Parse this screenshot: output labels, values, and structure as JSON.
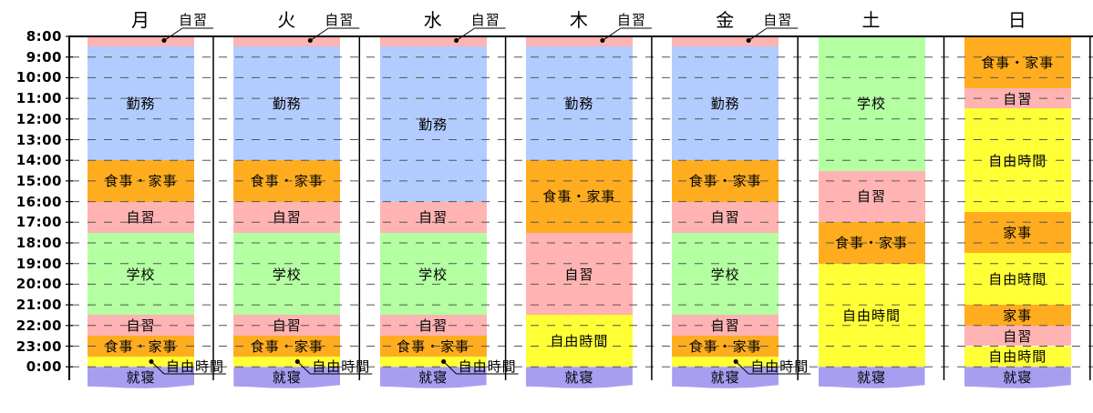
{
  "time_labels": [
    "8:00",
    "9:00",
    "10:00",
    "11:00",
    "12:00",
    "13:00",
    "14:00",
    "15:00",
    "16:00",
    "17:00",
    "18:00",
    "19:00",
    "20:00",
    "21:00",
    "22:00",
    "23:00",
    "0:00"
  ],
  "colors": {
    "自習": "#ffb3b3",
    "勤務": "#b3ccff",
    "食事・家事": "#ffad1f",
    "学校": "#b3ffa1",
    "自由時間": "#ffff35",
    "就寝": "#a89ef0",
    "家事": "#ffad1f"
  },
  "days": [
    {
      "name": "月",
      "callout_top": "自習",
      "callout_bottom": "自由時間",
      "blocks": [
        {
          "start": 8.0,
          "end": 8.5,
          "label": "自習",
          "show": false
        },
        {
          "start": 8.5,
          "end": 14.0,
          "label": "勤務",
          "show": true
        },
        {
          "start": 14.0,
          "end": 16.0,
          "label": "食事・家事",
          "show": true
        },
        {
          "start": 16.0,
          "end": 17.5,
          "label": "自習",
          "show": true
        },
        {
          "start": 17.5,
          "end": 21.5,
          "label": "学校",
          "show": true
        },
        {
          "start": 21.5,
          "end": 22.5,
          "label": "自習",
          "show": true
        },
        {
          "start": 22.5,
          "end": 23.5,
          "label": "食事・家事",
          "show": true
        },
        {
          "start": 23.5,
          "end": 24.0,
          "label": "自由時間",
          "show": false
        },
        {
          "start": 24.0,
          "end": 25.0,
          "label": "就寝",
          "show": true
        }
      ]
    },
    {
      "name": "火",
      "callout_top": "自習",
      "callout_bottom": "自由時間",
      "blocks": [
        {
          "start": 8.0,
          "end": 8.5,
          "label": "自習",
          "show": false
        },
        {
          "start": 8.5,
          "end": 14.0,
          "label": "勤務",
          "show": true
        },
        {
          "start": 14.0,
          "end": 16.0,
          "label": "食事・家事",
          "show": true
        },
        {
          "start": 16.0,
          "end": 17.5,
          "label": "自習",
          "show": true
        },
        {
          "start": 17.5,
          "end": 21.5,
          "label": "学校",
          "show": true
        },
        {
          "start": 21.5,
          "end": 22.5,
          "label": "自習",
          "show": true
        },
        {
          "start": 22.5,
          "end": 23.5,
          "label": "食事・家事",
          "show": true
        },
        {
          "start": 23.5,
          "end": 24.0,
          "label": "自由時間",
          "show": false
        },
        {
          "start": 24.0,
          "end": 25.0,
          "label": "就寝",
          "show": true
        }
      ]
    },
    {
      "name": "水",
      "callout_top": "自習",
      "callout_bottom": "自由時間",
      "blocks": [
        {
          "start": 8.0,
          "end": 8.5,
          "label": "自習",
          "show": false
        },
        {
          "start": 8.5,
          "end": 16.0,
          "label": "勤務",
          "show": true
        },
        {
          "start": 16.0,
          "end": 17.5,
          "label": "自習",
          "show": true
        },
        {
          "start": 17.5,
          "end": 21.5,
          "label": "学校",
          "show": true
        },
        {
          "start": 21.5,
          "end": 22.5,
          "label": "自習",
          "show": true
        },
        {
          "start": 22.5,
          "end": 23.5,
          "label": "食事・家事",
          "show": true
        },
        {
          "start": 23.5,
          "end": 24.0,
          "label": "自由時間",
          "show": false
        },
        {
          "start": 24.0,
          "end": 25.0,
          "label": "就寝",
          "show": true
        }
      ]
    },
    {
      "name": "木",
      "callout_top": "自習",
      "callout_bottom": "",
      "blocks": [
        {
          "start": 8.0,
          "end": 8.5,
          "label": "自習",
          "show": false
        },
        {
          "start": 8.5,
          "end": 14.0,
          "label": "勤務",
          "show": true
        },
        {
          "start": 14.0,
          "end": 17.5,
          "label": "食事・家事",
          "show": true
        },
        {
          "start": 17.5,
          "end": 21.5,
          "label": "自習",
          "show": true
        },
        {
          "start": 21.5,
          "end": 24.0,
          "label": "自由時間",
          "show": true
        },
        {
          "start": 24.0,
          "end": 25.0,
          "label": "就寝",
          "show": true
        }
      ]
    },
    {
      "name": "金",
      "callout_top": "自習",
      "callout_bottom": "自由時間",
      "blocks": [
        {
          "start": 8.0,
          "end": 8.5,
          "label": "自習",
          "show": false
        },
        {
          "start": 8.5,
          "end": 14.0,
          "label": "勤務",
          "show": true
        },
        {
          "start": 14.0,
          "end": 16.0,
          "label": "食事・家事",
          "show": true
        },
        {
          "start": 16.0,
          "end": 17.5,
          "label": "自習",
          "show": true
        },
        {
          "start": 17.5,
          "end": 21.5,
          "label": "学校",
          "show": true
        },
        {
          "start": 21.5,
          "end": 22.5,
          "label": "自習",
          "show": true
        },
        {
          "start": 22.5,
          "end": 23.5,
          "label": "食事・家事",
          "show": true
        },
        {
          "start": 23.5,
          "end": 24.0,
          "label": "自由時間",
          "show": false
        },
        {
          "start": 24.0,
          "end": 25.0,
          "label": "就寝",
          "show": true
        }
      ]
    },
    {
      "name": "土",
      "callout_top": "",
      "callout_bottom": "",
      "blocks": [
        {
          "start": 8.0,
          "end": 14.5,
          "label": "学校",
          "show": true
        },
        {
          "start": 14.5,
          "end": 17.0,
          "label": "自習",
          "show": true
        },
        {
          "start": 17.0,
          "end": 19.0,
          "label": "食事・家事",
          "show": true
        },
        {
          "start": 19.0,
          "end": 24.0,
          "label": "自由時間",
          "show": true
        },
        {
          "start": 24.0,
          "end": 25.0,
          "label": "就寝",
          "show": true
        }
      ]
    },
    {
      "name": "日",
      "callout_top": "",
      "callout_bottom": "",
      "blocks": [
        {
          "start": 8.0,
          "end": 10.5,
          "label": "食事・家事",
          "show": true
        },
        {
          "start": 10.5,
          "end": 11.5,
          "label": "自習",
          "show": true
        },
        {
          "start": 11.5,
          "end": 16.5,
          "label": "自由時間",
          "show": true
        },
        {
          "start": 16.5,
          "end": 18.5,
          "label": "家事",
          "show": true
        },
        {
          "start": 18.5,
          "end": 21.0,
          "label": "自由時間",
          "show": true
        },
        {
          "start": 21.0,
          "end": 22.0,
          "label": "家事",
          "show": true
        },
        {
          "start": 22.0,
          "end": 23.0,
          "label": "自習",
          "show": true
        },
        {
          "start": 23.0,
          "end": 24.0,
          "label": "自由時間",
          "show": true
        },
        {
          "start": 24.0,
          "end": 25.0,
          "label": "就寝",
          "show": true
        }
      ]
    }
  ]
}
